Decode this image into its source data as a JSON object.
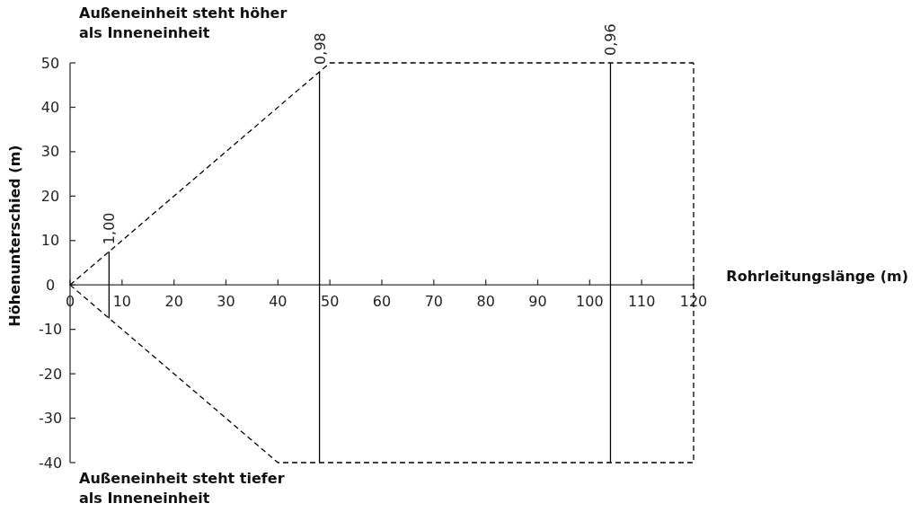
{
  "chart_data": {
    "type": "line",
    "xlabel": "Rohrleitungslänge (m)",
    "ylabel": "Höhenunterschied (m)",
    "xlim": [
      0,
      120
    ],
    "xticks": [
      0,
      10,
      20,
      30,
      40,
      50,
      60,
      70,
      80,
      90,
      100,
      110,
      120
    ],
    "ylim": [
      -40,
      50
    ],
    "yticks": [
      -40,
      -30,
      -20,
      -10,
      0,
      10,
      20,
      30,
      40,
      50
    ],
    "grid": false,
    "marker": "none",
    "series": [
      {
        "color": "#000000",
        "line_style": "dashed",
        "x": [
          0,
          50,
          120
        ],
        "values": [
          0,
          50,
          50
        ]
      },
      {
        "color": "#000000",
        "line_style": "dashed",
        "x": [
          0,
          40,
          120,
          120
        ],
        "values": [
          0,
          -40,
          -40,
          50
        ]
      },
      {
        "color": "#000000",
        "line_style": "solid",
        "x": [
          7.5,
          7.5
        ],
        "values": [
          -7.5,
          7.5
        ]
      },
      {
        "color": "#000000",
        "line_style": "solid",
        "x": [
          48,
          48
        ],
        "values": [
          -40,
          48
        ]
      },
      {
        "color": "#000000",
        "line_style": "solid",
        "x": [
          104,
          104
        ],
        "values": [
          -40,
          50
        ]
      }
    ],
    "annotations": [
      {
        "text": "1,00",
        "x": 7.5,
        "y": 7.5
      },
      {
        "text": "0,98",
        "x": 48,
        "y": 48
      },
      {
        "text": "0,96",
        "x": 104,
        "y": 50
      },
      "Außeneinheit steht höher als Inneneinheit",
      "Außeneinheit steht tiefer als Inneneinheit"
    ]
  }
}
